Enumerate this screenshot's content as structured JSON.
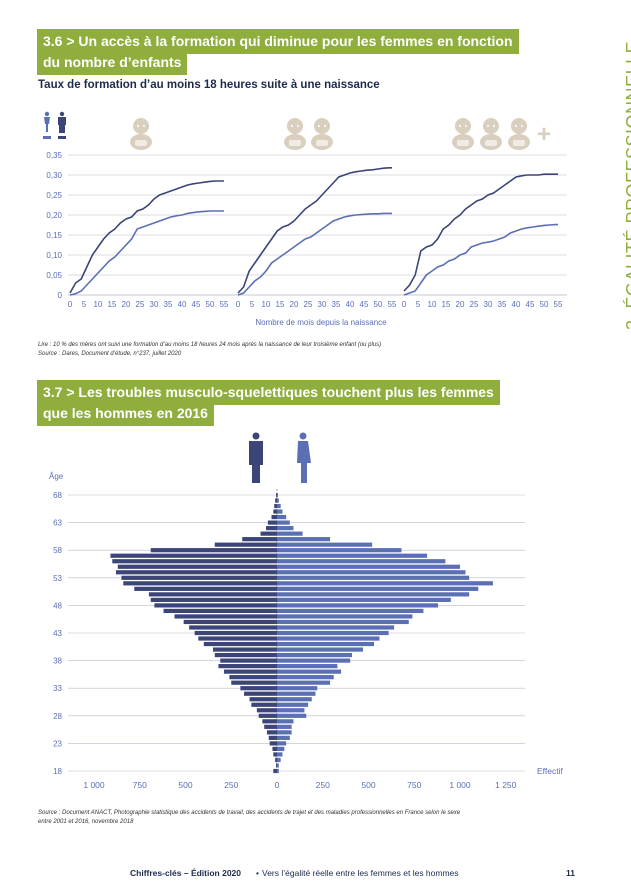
{
  "section1": {
    "title": "3.6 > Un accès à la formation qui diminue pour les femmes en fonction du nombre d’enfants",
    "title_line1": "3.6 > Un accès à la formation qui diminue pour les femmes en fonction",
    "title_line2": "du nombre d’enfants"
  },
  "side_label": "3. ÉGALITÉ PROFESSIONNELLE",
  "chart1_subtitle": "Taux de formation d’au moins 18 heures suite à une naissance",
  "chart1_note_line1": "Lire : 10 % des mères ont suivi une formation d’au moins 18 heures 24 mois après la naissance de leur troisième enfant (ou plus)",
  "chart1_note_line2": "Source : Dares, Document d’étude, n°237, juillet 2020",
  "section2": {
    "title_line1": "3.7 > Les troubles musculo-squelettiques touchent plus les femmes",
    "title_line2": "que les hommes en 2016"
  },
  "chart2_note_line1": "Source : Document ANACT, Photographie statistique des accidents de travail, des accidents de trajet et des maladies professionnelles en France selon le sexe",
  "chart2_note_line2": "entre 2001 et 2016, novembre 2018",
  "footer": {
    "left": "Chiffres-clés – Édition 2020",
    "sep": "•",
    "right": "Vers l’égalité réelle entre les femmes et les hommes",
    "page": "11"
  },
  "colors": {
    "green": "#8fae3e",
    "men": "#3b4577",
    "women": "#5b6fb5",
    "icon_beige": "#d9cfbf",
    "grid": "#b9bccb"
  },
  "icons": [
    "man-icon",
    "woman-icon",
    "baby-icon"
  ],
  "chart_data": [
    {
      "type": "line",
      "title": "Taux de formation d’au moins 18 heures suite à une naissance",
      "xlabel": "Nombre de mois depuis la naissance",
      "ylabel": "",
      "ylim": [
        0,
        0.35
      ],
      "yticks": [
        "0",
        "0,05",
        "0,10",
        "0,15",
        "0,20",
        "0,25",
        "0,30",
        "0,35"
      ],
      "xticks": [
        "0",
        "5",
        "10",
        "15",
        "20",
        "25",
        "30",
        "35",
        "40",
        "45",
        "50",
        "55"
      ],
      "panels": [
        {
          "x": [
            0,
            2,
            4,
            6,
            8,
            10,
            12,
            14,
            16,
            18,
            20,
            22,
            24,
            26,
            28,
            30,
            32,
            34,
            36,
            38,
            40,
            42,
            44,
            46,
            48,
            50,
            52,
            54,
            55
          ],
          "series": [
            {
              "values": [
                0.005,
                0.03,
                0.04,
                0.07,
                0.1,
                0.12,
                0.14,
                0.155,
                0.165,
                0.18,
                0.19,
                0.195,
                0.21,
                0.215,
                0.225,
                0.24,
                0.25,
                0.255,
                0.26,
                0.265,
                0.27,
                0.275,
                0.278,
                0.28,
                0.282,
                0.284,
                0.285,
                0.285,
                0.285
              ]
            },
            {
              "values": [
                0,
                0.003,
                0.01,
                0.025,
                0.04,
                0.055,
                0.07,
                0.085,
                0.095,
                0.11,
                0.125,
                0.14,
                0.165,
                0.17,
                0.175,
                0.18,
                0.185,
                0.19,
                0.195,
                0.198,
                0.2,
                0.204,
                0.206,
                0.208,
                0.209,
                0.21,
                0.21,
                0.21,
                0.21
              ]
            }
          ]
        },
        {
          "x": [
            0,
            2,
            4,
            6,
            8,
            10,
            12,
            14,
            16,
            18,
            20,
            22,
            24,
            26,
            28,
            30,
            32,
            34,
            36,
            38,
            40,
            42,
            44,
            46,
            48,
            50,
            52,
            54,
            55
          ],
          "series": [
            {
              "values": [
                0.005,
                0.02,
                0.06,
                0.08,
                0.1,
                0.12,
                0.14,
                0.16,
                0.17,
                0.175,
                0.185,
                0.2,
                0.215,
                0.225,
                0.235,
                0.25,
                0.265,
                0.28,
                0.295,
                0.3,
                0.305,
                0.308,
                0.31,
                0.312,
                0.313,
                0.315,
                0.317,
                0.318,
                0.318
              ]
            },
            {
              "values": [
                0,
                0.005,
                0.02,
                0.035,
                0.045,
                0.06,
                0.08,
                0.09,
                0.1,
                0.11,
                0.12,
                0.13,
                0.14,
                0.145,
                0.155,
                0.165,
                0.175,
                0.185,
                0.19,
                0.195,
                0.198,
                0.2,
                0.201,
                0.202,
                0.203,
                0.203,
                0.204,
                0.204,
                0.204
              ]
            }
          ]
        },
        {
          "x": [
            0,
            2,
            4,
            6,
            8,
            10,
            12,
            14,
            16,
            18,
            20,
            22,
            24,
            26,
            28,
            30,
            32,
            34,
            36,
            38,
            40,
            42,
            44,
            46,
            48,
            50,
            52,
            54,
            55
          ],
          "series": [
            {
              "values": [
                0.01,
                0.025,
                0.05,
                0.11,
                0.12,
                0.125,
                0.14,
                0.165,
                0.175,
                0.19,
                0.2,
                0.215,
                0.225,
                0.235,
                0.24,
                0.25,
                0.255,
                0.265,
                0.275,
                0.285,
                0.295,
                0.298,
                0.3,
                0.3,
                0.3,
                0.302,
                0.302,
                0.302,
                0.302
              ]
            },
            {
              "values": [
                0,
                0.005,
                0.01,
                0.03,
                0.05,
                0.06,
                0.07,
                0.075,
                0.085,
                0.09,
                0.1,
                0.105,
                0.12,
                0.125,
                0.13,
                0.132,
                0.135,
                0.14,
                0.145,
                0.155,
                0.16,
                0.165,
                0.168,
                0.17,
                0.172,
                0.174,
                0.175,
                0.176,
                0.176
              ]
            }
          ]
        }
      ]
    },
    {
      "type": "bar",
      "title": "",
      "xlabel": "Effectif",
      "ylabel": "Âge",
      "orientation": "horizontal-pyramid",
      "xlim": [
        -1000,
        1250
      ],
      "xticks": [
        "1 000",
        "750",
        "500",
        "250",
        "0",
        "250",
        "500",
        "750",
        "1 000",
        "1 250"
      ],
      "yticks": [
        "68",
        "63",
        "58",
        "53",
        "48",
        "43",
        "38",
        "33",
        "28",
        "23",
        "18"
      ],
      "ages": [
        69,
        68,
        67,
        66,
        65,
        64,
        63,
        62,
        61,
        60,
        59,
        58,
        57,
        56,
        55,
        54,
        53,
        52,
        51,
        50,
        49,
        48,
        47,
        46,
        45,
        44,
        43,
        42,
        41,
        40,
        39,
        38,
        37,
        36,
        35,
        34,
        33,
        32,
        31,
        30,
        29,
        28,
        27,
        26,
        25,
        24,
        23,
        22,
        21,
        20,
        19,
        18
      ],
      "series": [
        {
          "values": [
            0,
            5,
            10,
            15,
            20,
            30,
            50,
            60,
            90,
            190,
            340,
            690,
            910,
            900,
            870,
            880,
            850,
            840,
            780,
            700,
            690,
            670,
            620,
            560,
            510,
            480,
            450,
            430,
            400,
            350,
            340,
            310,
            320,
            290,
            260,
            250,
            200,
            180,
            150,
            140,
            110,
            100,
            80,
            70,
            55,
            45,
            40,
            25,
            20,
            10,
            5,
            20
          ]
        },
        {
          "values": [
            0,
            5,
            10,
            20,
            30,
            50,
            70,
            90,
            140,
            290,
            520,
            680,
            820,
            920,
            1000,
            1030,
            1050,
            1180,
            1100,
            1050,
            950,
            880,
            800,
            740,
            720,
            640,
            610,
            560,
            530,
            470,
            410,
            400,
            330,
            350,
            310,
            290,
            220,
            210,
            190,
            170,
            150,
            160,
            90,
            80,
            80,
            70,
            50,
            40,
            30,
            20,
            10,
            10
          ]
        }
      ]
    }
  ]
}
